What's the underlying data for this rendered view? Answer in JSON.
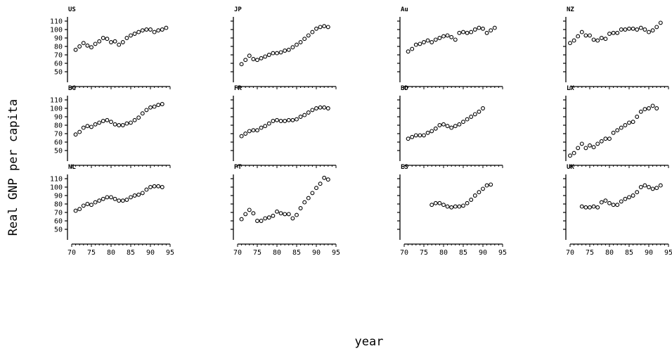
{
  "chart_data": {
    "type": "scatter",
    "title": "",
    "ylabel": "Real GNP per capita",
    "xlabel": "year",
    "xlim": [
      70,
      95
    ],
    "ylim": [
      40,
      115
    ],
    "xticks": [
      70,
      75,
      80,
      85,
      90,
      95
    ],
    "yticks": [
      50,
      60,
      70,
      80,
      90,
      100,
      110
    ],
    "grid": false,
    "marker": "open-circle",
    "panels": [
      {
        "name": "US",
        "points": [
          [
            71,
            76
          ],
          [
            72,
            80
          ],
          [
            73,
            84
          ],
          [
            74,
            81
          ],
          [
            75,
            79
          ],
          [
            76,
            83
          ],
          [
            77,
            86
          ],
          [
            78,
            90
          ],
          [
            79,
            89
          ],
          [
            80,
            85
          ],
          [
            81,
            86
          ],
          [
            82,
            82
          ],
          [
            83,
            85
          ],
          [
            84,
            90
          ],
          [
            85,
            93
          ],
          [
            86,
            95
          ],
          [
            87,
            97
          ],
          [
            88,
            99
          ],
          [
            89,
            100
          ],
          [
            90,
            100
          ],
          [
            91,
            97
          ],
          [
            92,
            99
          ],
          [
            93,
            100
          ],
          [
            94,
            102
          ]
        ]
      },
      {
        "name": "JP",
        "points": [
          [
            71,
            59
          ],
          [
            72,
            64
          ],
          [
            73,
            69
          ],
          [
            74,
            65
          ],
          [
            75,
            64
          ],
          [
            76,
            66
          ],
          [
            77,
            68
          ],
          [
            78,
            70
          ],
          [
            79,
            72
          ],
          [
            80,
            72
          ],
          [
            81,
            73
          ],
          [
            82,
            75
          ],
          [
            83,
            76
          ],
          [
            84,
            79
          ],
          [
            85,
            82
          ],
          [
            86,
            85
          ],
          [
            87,
            89
          ],
          [
            88,
            93
          ],
          [
            89,
            97
          ],
          [
            90,
            101
          ],
          [
            91,
            103
          ],
          [
            92,
            104
          ],
          [
            93,
            103
          ]
        ]
      },
      {
        "name": "Au",
        "points": [
          [
            71,
            74
          ],
          [
            72,
            77
          ],
          [
            73,
            82
          ],
          [
            74,
            83
          ],
          [
            75,
            85
          ],
          [
            76,
            87
          ],
          [
            77,
            85
          ],
          [
            78,
            88
          ],
          [
            79,
            90
          ],
          [
            80,
            92
          ],
          [
            81,
            93
          ],
          [
            82,
            91
          ],
          [
            83,
            88
          ],
          [
            84,
            96
          ],
          [
            85,
            97
          ],
          [
            86,
            96
          ],
          [
            87,
            97
          ],
          [
            88,
            100
          ],
          [
            89,
            102
          ],
          [
            90,
            101
          ],
          [
            91,
            96
          ],
          [
            92,
            99
          ],
          [
            93,
            102
          ]
        ]
      },
      {
        "name": "NZ",
        "points": [
          [
            70,
            84
          ],
          [
            71,
            87
          ],
          [
            72,
            92
          ],
          [
            73,
            97
          ],
          [
            74,
            93
          ],
          [
            75,
            93
          ],
          [
            76,
            88
          ],
          [
            77,
            87
          ],
          [
            78,
            90
          ],
          [
            79,
            89
          ],
          [
            80,
            95
          ],
          [
            81,
            96
          ],
          [
            82,
            96
          ],
          [
            83,
            100
          ],
          [
            84,
            100
          ],
          [
            85,
            101
          ],
          [
            86,
            101
          ],
          [
            87,
            100
          ],
          [
            88,
            102
          ],
          [
            89,
            100
          ],
          [
            90,
            97
          ],
          [
            91,
            99
          ],
          [
            92,
            103
          ],
          [
            93,
            108
          ]
        ]
      },
      {
        "name": "BG",
        "points": [
          [
            71,
            69
          ],
          [
            72,
            72
          ],
          [
            73,
            77
          ],
          [
            74,
            79
          ],
          [
            75,
            78
          ],
          [
            76,
            81
          ],
          [
            77,
            83
          ],
          [
            78,
            85
          ],
          [
            79,
            86
          ],
          [
            80,
            84
          ],
          [
            81,
            81
          ],
          [
            82,
            80
          ],
          [
            83,
            80
          ],
          [
            84,
            82
          ],
          [
            85,
            83
          ],
          [
            86,
            86
          ],
          [
            87,
            89
          ],
          [
            88,
            94
          ],
          [
            89,
            98
          ],
          [
            90,
            101
          ],
          [
            91,
            102
          ],
          [
            92,
            104
          ],
          [
            93,
            105
          ]
        ]
      },
      {
        "name": "FR",
        "points": [
          [
            71,
            67
          ],
          [
            72,
            70
          ],
          [
            73,
            73
          ],
          [
            74,
            74
          ],
          [
            75,
            74
          ],
          [
            76,
            77
          ],
          [
            77,
            79
          ],
          [
            78,
            82
          ],
          [
            79,
            85
          ],
          [
            80,
            86
          ],
          [
            81,
            85
          ],
          [
            82,
            85
          ],
          [
            83,
            86
          ],
          [
            84,
            86
          ],
          [
            85,
            87
          ],
          [
            86,
            90
          ],
          [
            87,
            92
          ],
          [
            88,
            95
          ],
          [
            89,
            98
          ],
          [
            90,
            100
          ],
          [
            91,
            101
          ],
          [
            92,
            101
          ],
          [
            93,
            100
          ]
        ]
      },
      {
        "name": "BD",
        "points": [
          [
            71,
            64
          ],
          [
            72,
            66
          ],
          [
            73,
            68
          ],
          [
            74,
            68
          ],
          [
            75,
            68
          ],
          [
            76,
            71
          ],
          [
            77,
            73
          ],
          [
            78,
            76
          ],
          [
            79,
            80
          ],
          [
            80,
            81
          ],
          [
            81,
            79
          ],
          [
            82,
            77
          ],
          [
            83,
            79
          ],
          [
            84,
            81
          ],
          [
            85,
            84
          ],
          [
            86,
            87
          ],
          [
            87,
            90
          ],
          [
            88,
            93
          ],
          [
            89,
            96
          ],
          [
            90,
            100
          ]
        ]
      },
      {
        "name": "LX",
        "points": [
          [
            70,
            44
          ],
          [
            71,
            47
          ],
          [
            72,
            53
          ],
          [
            73,
            58
          ],
          [
            74,
            53
          ],
          [
            75,
            56
          ],
          [
            76,
            54
          ],
          [
            77,
            58
          ],
          [
            78,
            61
          ],
          [
            79,
            64
          ],
          [
            80,
            64
          ],
          [
            81,
            71
          ],
          [
            82,
            74
          ],
          [
            83,
            77
          ],
          [
            84,
            80
          ],
          [
            85,
            83
          ],
          [
            86,
            84
          ],
          [
            87,
            90
          ],
          [
            88,
            96
          ],
          [
            89,
            99
          ],
          [
            90,
            100
          ],
          [
            91,
            103
          ],
          [
            92,
            100
          ]
        ]
      },
      {
        "name": "NL",
        "points": [
          [
            71,
            72
          ],
          [
            72,
            74
          ],
          [
            73,
            78
          ],
          [
            74,
            80
          ],
          [
            75,
            79
          ],
          [
            76,
            82
          ],
          [
            77,
            84
          ],
          [
            78,
            86
          ],
          [
            79,
            88
          ],
          [
            80,
            88
          ],
          [
            81,
            86
          ],
          [
            82,
            84
          ],
          [
            83,
            84
          ],
          [
            84,
            85
          ],
          [
            85,
            88
          ],
          [
            86,
            90
          ],
          [
            87,
            91
          ],
          [
            88,
            93
          ],
          [
            89,
            97
          ],
          [
            90,
            100
          ],
          [
            91,
            101
          ],
          [
            92,
            101
          ],
          [
            93,
            100
          ]
        ]
      },
      {
        "name": "PT",
        "points": [
          [
            71,
            62
          ],
          [
            72,
            68
          ],
          [
            73,
            73
          ],
          [
            74,
            69
          ],
          [
            75,
            60
          ],
          [
            76,
            60
          ],
          [
            77,
            63
          ],
          [
            78,
            64
          ],
          [
            79,
            66
          ],
          [
            80,
            71
          ],
          [
            81,
            69
          ],
          [
            82,
            68
          ],
          [
            83,
            68
          ],
          [
            84,
            63
          ],
          [
            85,
            67
          ],
          [
            86,
            75
          ],
          [
            87,
            82
          ],
          [
            88,
            87
          ],
          [
            89,
            93
          ],
          [
            90,
            99
          ],
          [
            91,
            104
          ],
          [
            92,
            111
          ],
          [
            93,
            109
          ]
        ]
      },
      {
        "name": "ES",
        "points": [
          [
            77,
            79
          ],
          [
            78,
            81
          ],
          [
            79,
            81
          ],
          [
            80,
            79
          ],
          [
            81,
            77
          ],
          [
            82,
            76
          ],
          [
            83,
            77
          ],
          [
            84,
            77
          ],
          [
            85,
            78
          ],
          [
            86,
            81
          ],
          [
            87,
            85
          ],
          [
            88,
            90
          ],
          [
            89,
            94
          ],
          [
            90,
            98
          ],
          [
            91,
            102
          ],
          [
            92,
            103
          ]
        ]
      },
      {
        "name": "UK",
        "points": [
          [
            73,
            77
          ],
          [
            74,
            76
          ],
          [
            75,
            76
          ],
          [
            76,
            77
          ],
          [
            77,
            76
          ],
          [
            78,
            82
          ],
          [
            79,
            84
          ],
          [
            80,
            81
          ],
          [
            81,
            79
          ],
          [
            82,
            79
          ],
          [
            83,
            83
          ],
          [
            84,
            86
          ],
          [
            85,
            88
          ],
          [
            86,
            90
          ],
          [
            87,
            94
          ],
          [
            88,
            100
          ],
          [
            89,
            102
          ],
          [
            90,
            100
          ],
          [
            91,
            98
          ],
          [
            92,
            99
          ],
          [
            93,
            102
          ]
        ]
      }
    ]
  }
}
